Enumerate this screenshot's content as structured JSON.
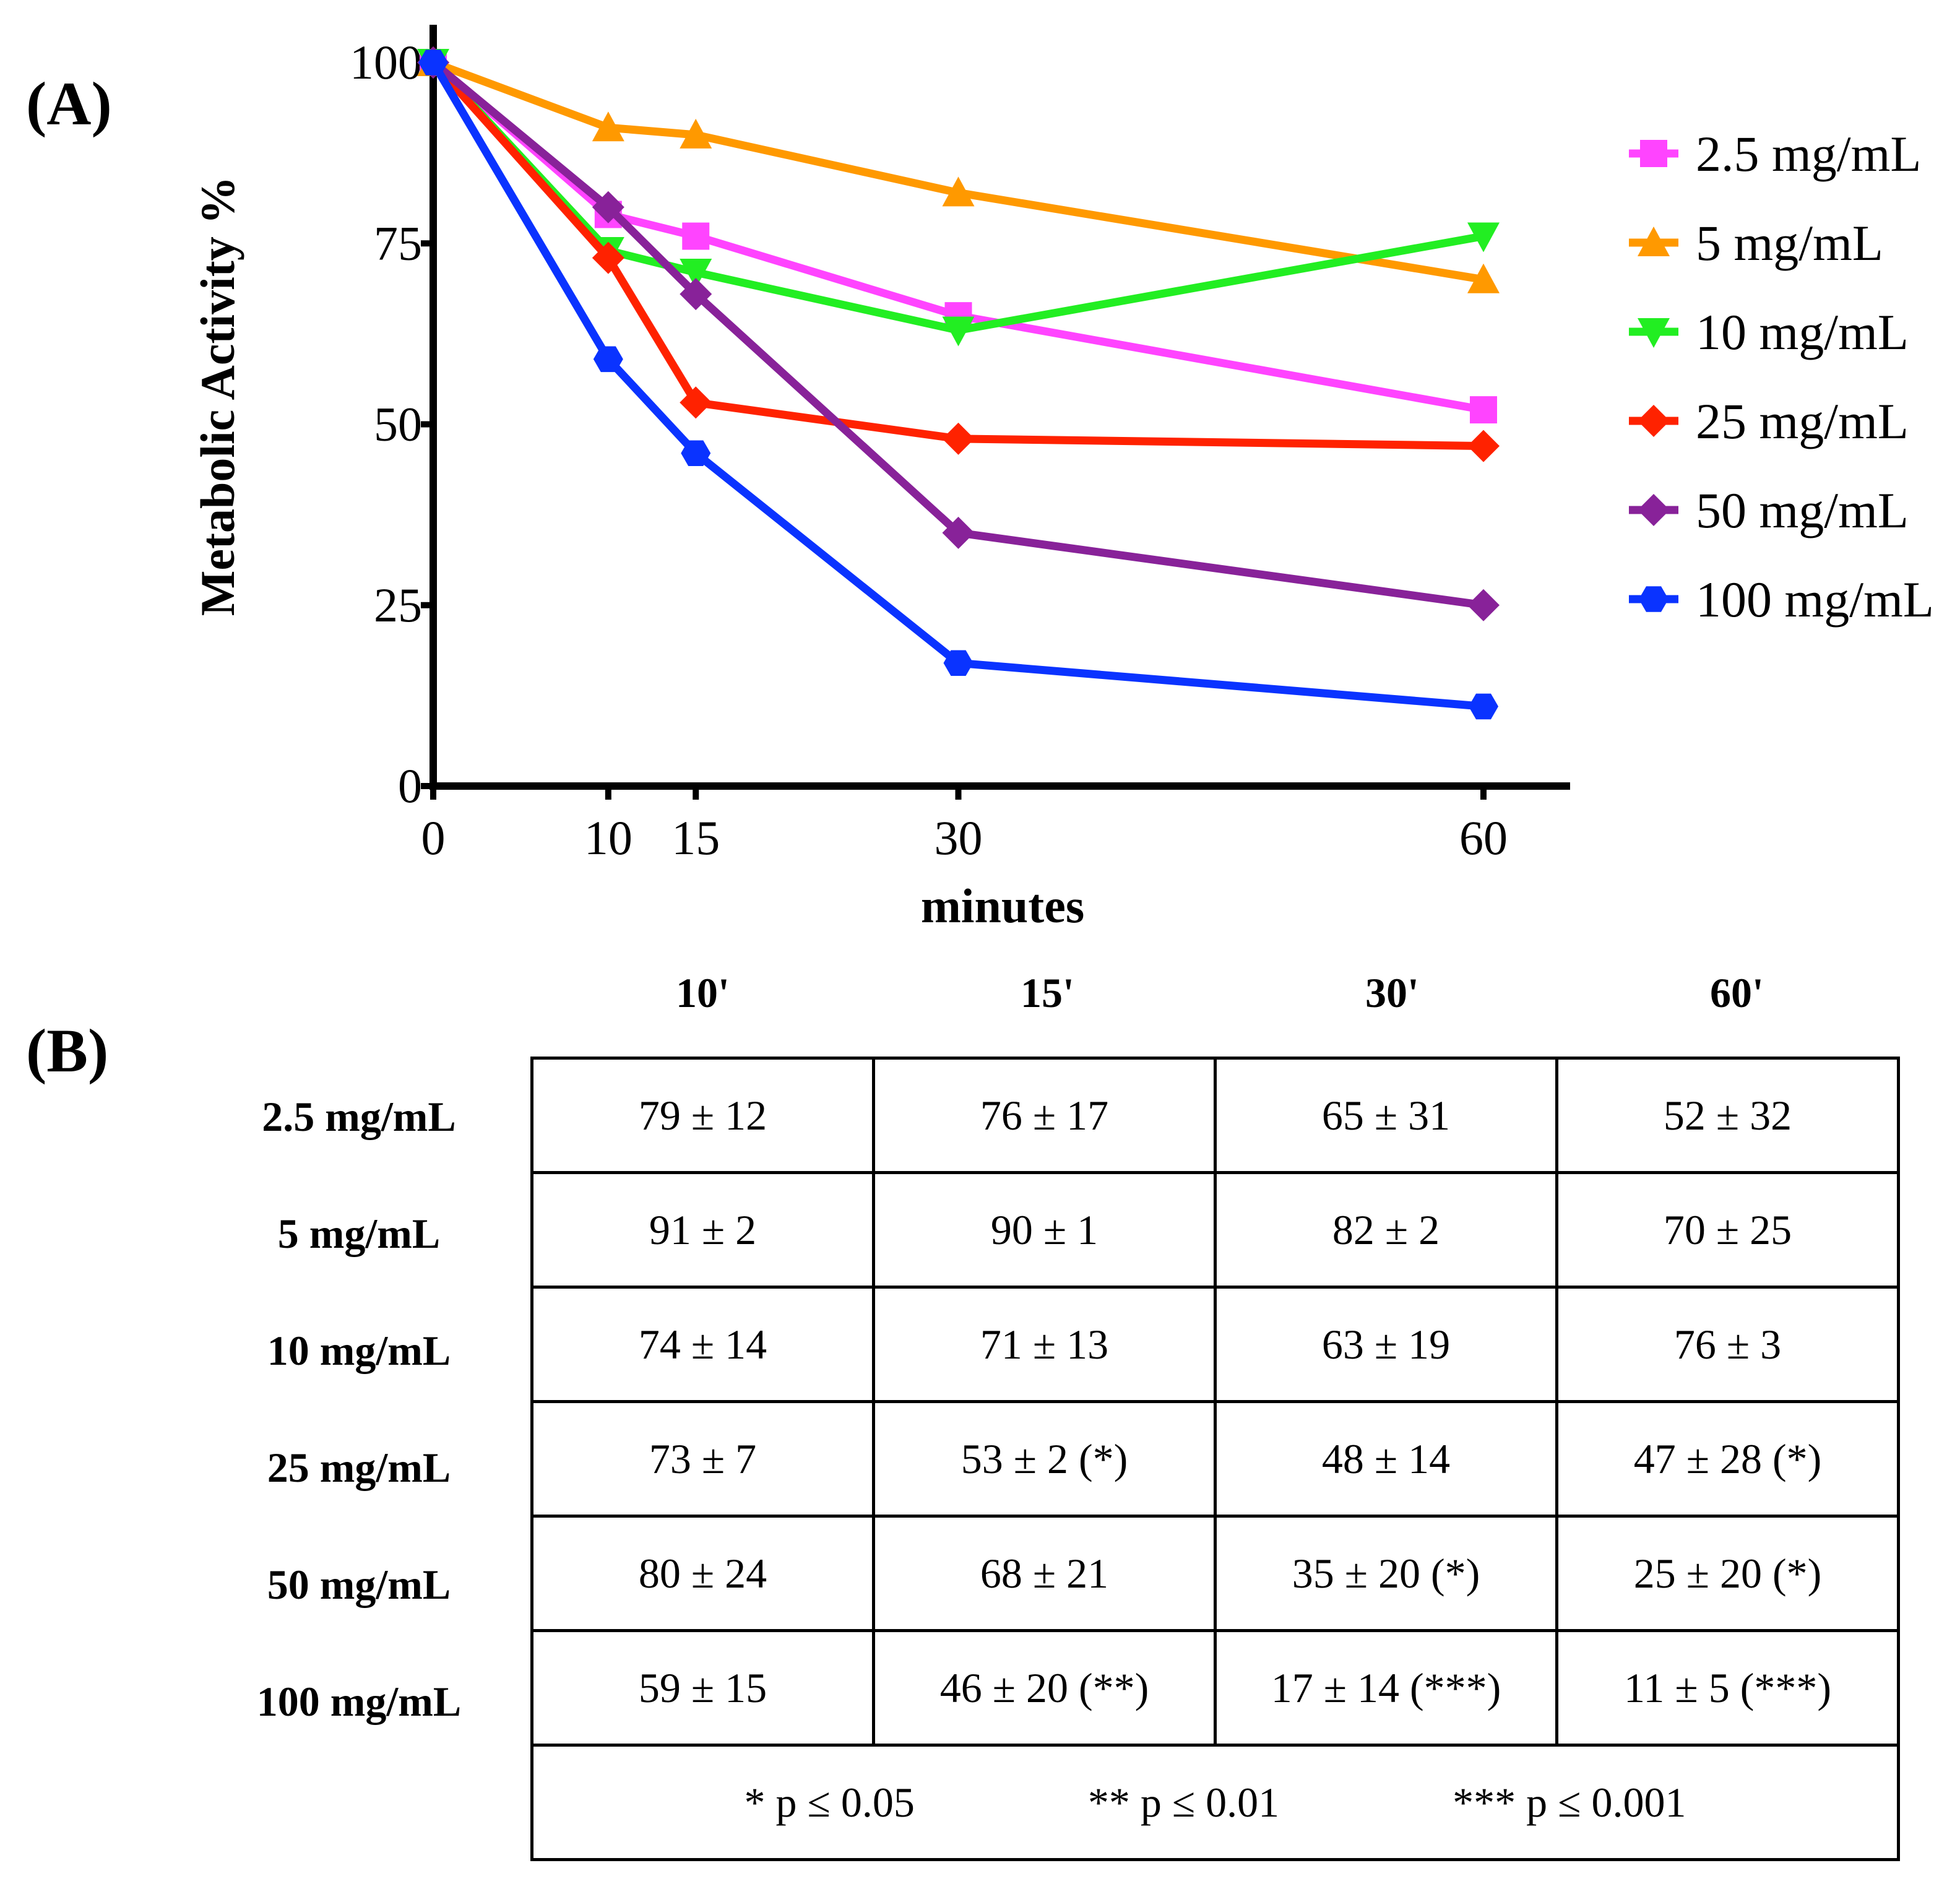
{
  "panel_labels": {
    "a": "(A)",
    "b": "(B)"
  },
  "chart_data": {
    "type": "line",
    "title": "",
    "xlabel": "minutes",
    "ylabel": "Metabolic Activity %",
    "x": [
      0,
      10,
      15,
      30,
      60
    ],
    "xticks": [
      "0",
      "10",
      "15",
      "30",
      "60"
    ],
    "yticks": [
      "0",
      "25",
      "50",
      "75",
      "100"
    ],
    "xlim": [
      0,
      65
    ],
    "ylim": [
      0,
      100
    ],
    "legend_position": "right",
    "series": [
      {
        "name": "2.5 mg/mL",
        "color": "#ff44ff",
        "marker": "square",
        "values": [
          100,
          79,
          76,
          65,
          52
        ]
      },
      {
        "name": "5 mg/mL",
        "color": "#ff9900",
        "marker": "triangle-up",
        "values": [
          100,
          91,
          90,
          82,
          70
        ]
      },
      {
        "name": "10 mg/mL",
        "color": "#22ee22",
        "marker": "triangle-down",
        "values": [
          100,
          74,
          71,
          63,
          76
        ]
      },
      {
        "name": "25 mg/mL",
        "color": "#ff2200",
        "marker": "diamond",
        "values": [
          100,
          73,
          53,
          48,
          47
        ]
      },
      {
        "name": "50 mg/mL",
        "color": "#882299",
        "marker": "diamond",
        "values": [
          100,
          80,
          68,
          35,
          25
        ]
      },
      {
        "name": "100 mg/mL",
        "color": "#0a33ff",
        "marker": "hexagon",
        "values": [
          100,
          59,
          46,
          17,
          11
        ]
      }
    ]
  },
  "table": {
    "columns": [
      "10'",
      "15'",
      "30'",
      "60'"
    ],
    "rows": [
      {
        "label": "2.5 mg/mL",
        "cells": [
          "79 ± 12",
          "76 ± 17",
          "65 ± 31",
          "52 ± 32"
        ]
      },
      {
        "label": "5 mg/mL",
        "cells": [
          "91 ± 2",
          "90 ± 1",
          "82 ± 2",
          "70 ± 25"
        ]
      },
      {
        "label": "10 mg/mL",
        "cells": [
          "74 ± 14",
          "71 ± 13",
          "63 ± 19",
          "76 ± 3"
        ]
      },
      {
        "label": "25 mg/mL",
        "cells": [
          "73 ± 7",
          "53 ± 2 (*)",
          "48 ± 14",
          "47 ± 28 (*)"
        ]
      },
      {
        "label": "50 mg/mL",
        "cells": [
          "80 ± 24",
          "68 ± 21",
          "35 ± 20 (*)",
          "25 ± 20 (*)"
        ]
      },
      {
        "label": "100 mg/mL",
        "cells": [
          "59 ± 15",
          "46 ± 20 (**)",
          "17 ± 14 (***)",
          "11 ± 5 (***)"
        ]
      }
    ],
    "footnotes": [
      "* p ≤ 0.05",
      "** p ≤ 0.01",
      "*** p ≤ 0.001"
    ]
  }
}
